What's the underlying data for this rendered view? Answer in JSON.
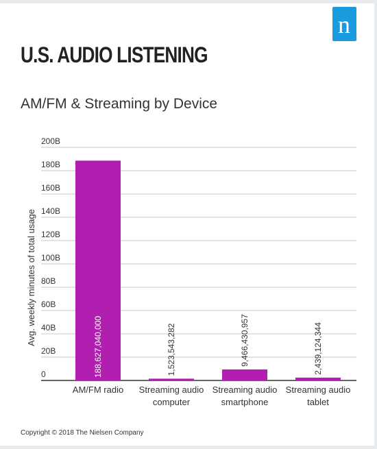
{
  "header": {
    "title": "U.S. AUDIO LISTENING",
    "subtitle": "AM/FM & Streaming by Device",
    "logo_letter": "n"
  },
  "footer": {
    "copyright": "Copyright © 2018 The Nielsen Company"
  },
  "colors": {
    "bar": "#b11fb1",
    "brand": "#1a9be0",
    "grid": "#c8c8c8",
    "text": "#333333"
  },
  "chart_data": {
    "type": "bar",
    "title": "AM/FM & Streaming by Device",
    "ylabel": "Avg. weekly minutes of total usage",
    "xlabel": "",
    "ylim": [
      0,
      200000000000
    ],
    "yticks": [
      "0",
      "20B",
      "40B",
      "60B",
      "80B",
      "100B",
      "120B",
      "140B",
      "160B",
      "180B",
      "200B"
    ],
    "categories": [
      [
        "AM/FM radio"
      ],
      [
        "Streaming audio",
        "computer"
      ],
      [
        "Streaming audio",
        "smartphone"
      ],
      [
        "Streaming audio",
        "tablet"
      ]
    ],
    "values": [
      188627040000,
      1523543282,
      9466430957,
      2439124344
    ],
    "data_labels": [
      "188,627,040,000",
      "1,523,543,282",
      "9,466,430,957",
      "2,439,124,344"
    ],
    "grid": true,
    "legend": "none"
  }
}
